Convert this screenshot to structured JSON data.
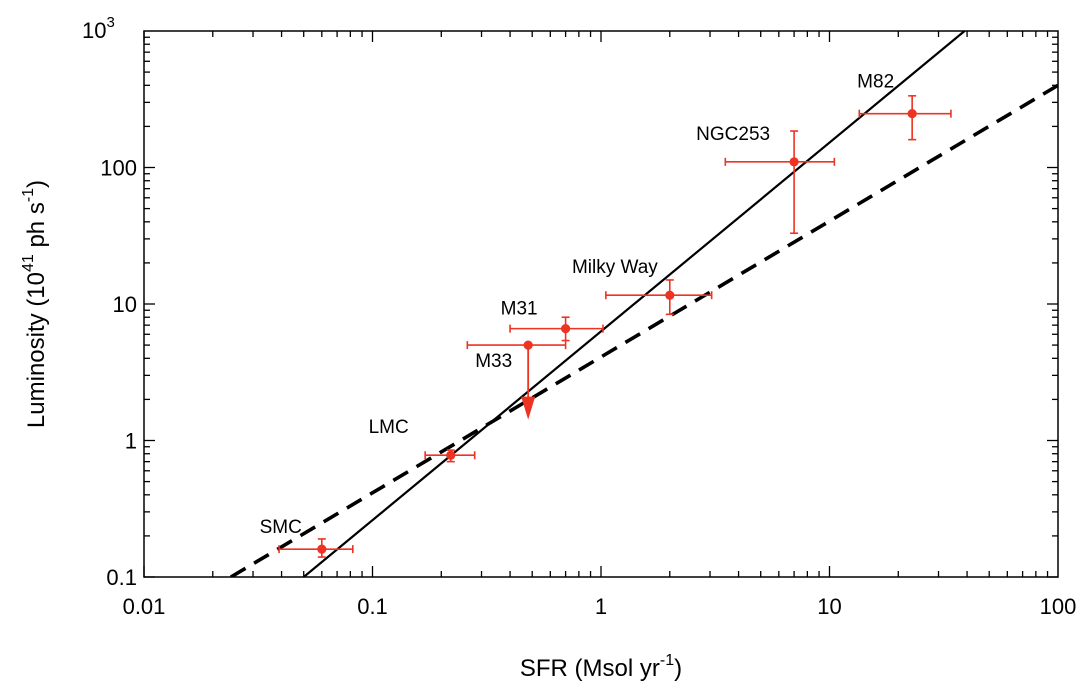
{
  "chart_data": {
    "type": "scatter",
    "title": "",
    "xlabel": {
      "main": "SFR (Msol yr",
      "sup": "-1",
      "close": ")"
    },
    "ylabel": {
      "main": "Luminosity (10",
      "sup1": "41",
      "mid": " ph s",
      "sup2": "-1",
      "close": ")"
    },
    "x_scale": "log",
    "y_scale": "log",
    "xlim": [
      0.01,
      100
    ],
    "ylim": [
      0.1,
      1000
    ],
    "x_ticks": [
      {
        "value": 0.01,
        "label": "0.01"
      },
      {
        "value": 0.1,
        "label": "0.1"
      },
      {
        "value": 1,
        "label": "1"
      },
      {
        "value": 10,
        "label": "10"
      },
      {
        "value": 100,
        "label": "100"
      }
    ],
    "y_ticks": [
      {
        "value": 0.1,
        "label": "0.1"
      },
      {
        "value": 1,
        "label": "1"
      },
      {
        "value": 10,
        "label": "10"
      },
      {
        "value": 100,
        "label": "100"
      }
    ],
    "y_top_tick": {
      "value": 1000,
      "base": "10",
      "exp": "3"
    },
    "grid": false,
    "legend": "none",
    "colors": {
      "points": "#ee3322",
      "lines": "#000000"
    },
    "points": [
      {
        "label": "SMC",
        "x": 0.06,
        "y": 0.16,
        "xerr": [
          0.039,
          0.082
        ],
        "yerr": [
          0.14,
          0.19
        ]
      },
      {
        "label": "LMC",
        "x": 0.22,
        "y": 0.78,
        "xerr": [
          0.17,
          0.28
        ],
        "yerr": [
          0.7,
          0.85
        ]
      },
      {
        "label": "M33",
        "x": 0.48,
        "y": 5.0,
        "xerr": [
          0.26,
          0.7
        ],
        "yerr": null,
        "upper_limit_to": 1.6
      },
      {
        "label": "M31",
        "x": 0.7,
        "y": 6.6,
        "xerr": [
          0.4,
          1.02
        ],
        "yerr": [
          5.4,
          8.0
        ]
      },
      {
        "label": "Milky Way",
        "x": 2.0,
        "y": 11.6,
        "xerr": [
          1.05,
          3.05
        ],
        "yerr": [
          8.4,
          15.0
        ]
      },
      {
        "label": "NGC253",
        "x": 7.0,
        "y": 110,
        "xerr": [
          3.5,
          10.5
        ],
        "yerr": [
          33,
          185
        ]
      },
      {
        "label": "M82",
        "x": 23.0,
        "y": 248,
        "xerr": [
          13.5,
          34.0
        ],
        "yerr": [
          160,
          335
        ]
      }
    ],
    "lines": [
      {
        "style": "solid",
        "x": [
          0.05,
          39
        ],
        "y": [
          0.1,
          1000
        ]
      },
      {
        "style": "dashed",
        "x": [
          0.024,
          100
        ],
        "y": [
          0.1,
          400
        ]
      }
    ]
  }
}
